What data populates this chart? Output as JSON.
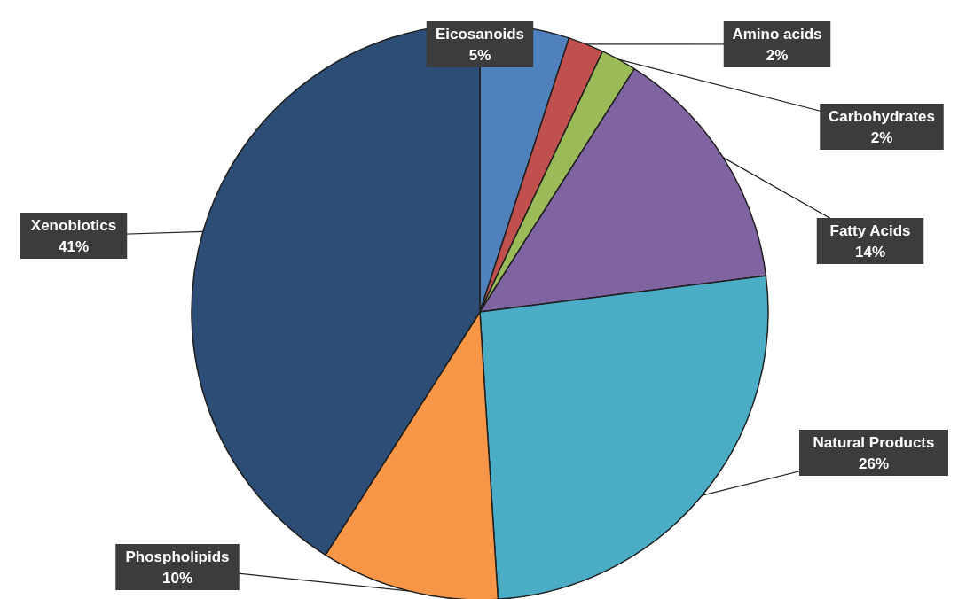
{
  "chart_data": {
    "type": "pie",
    "categories": [
      "Eicosanoids",
      "Amino acids",
      "Carbohydrates",
      "Fatty Acids",
      "Natural Products",
      "Phospholipids",
      "Xenobiotics"
    ],
    "values": [
      5,
      2,
      2,
      14,
      26,
      10,
      41
    ],
    "value_labels": [
      "5%",
      "2%",
      "2%",
      "14%",
      "26%",
      "10%",
      "41%"
    ],
    "colors": [
      "#4f81bd",
      "#c0504d",
      "#9bbb59",
      "#8064a2",
      "#4bacc6",
      "#f79646",
      "#2c4d75"
    ]
  }
}
